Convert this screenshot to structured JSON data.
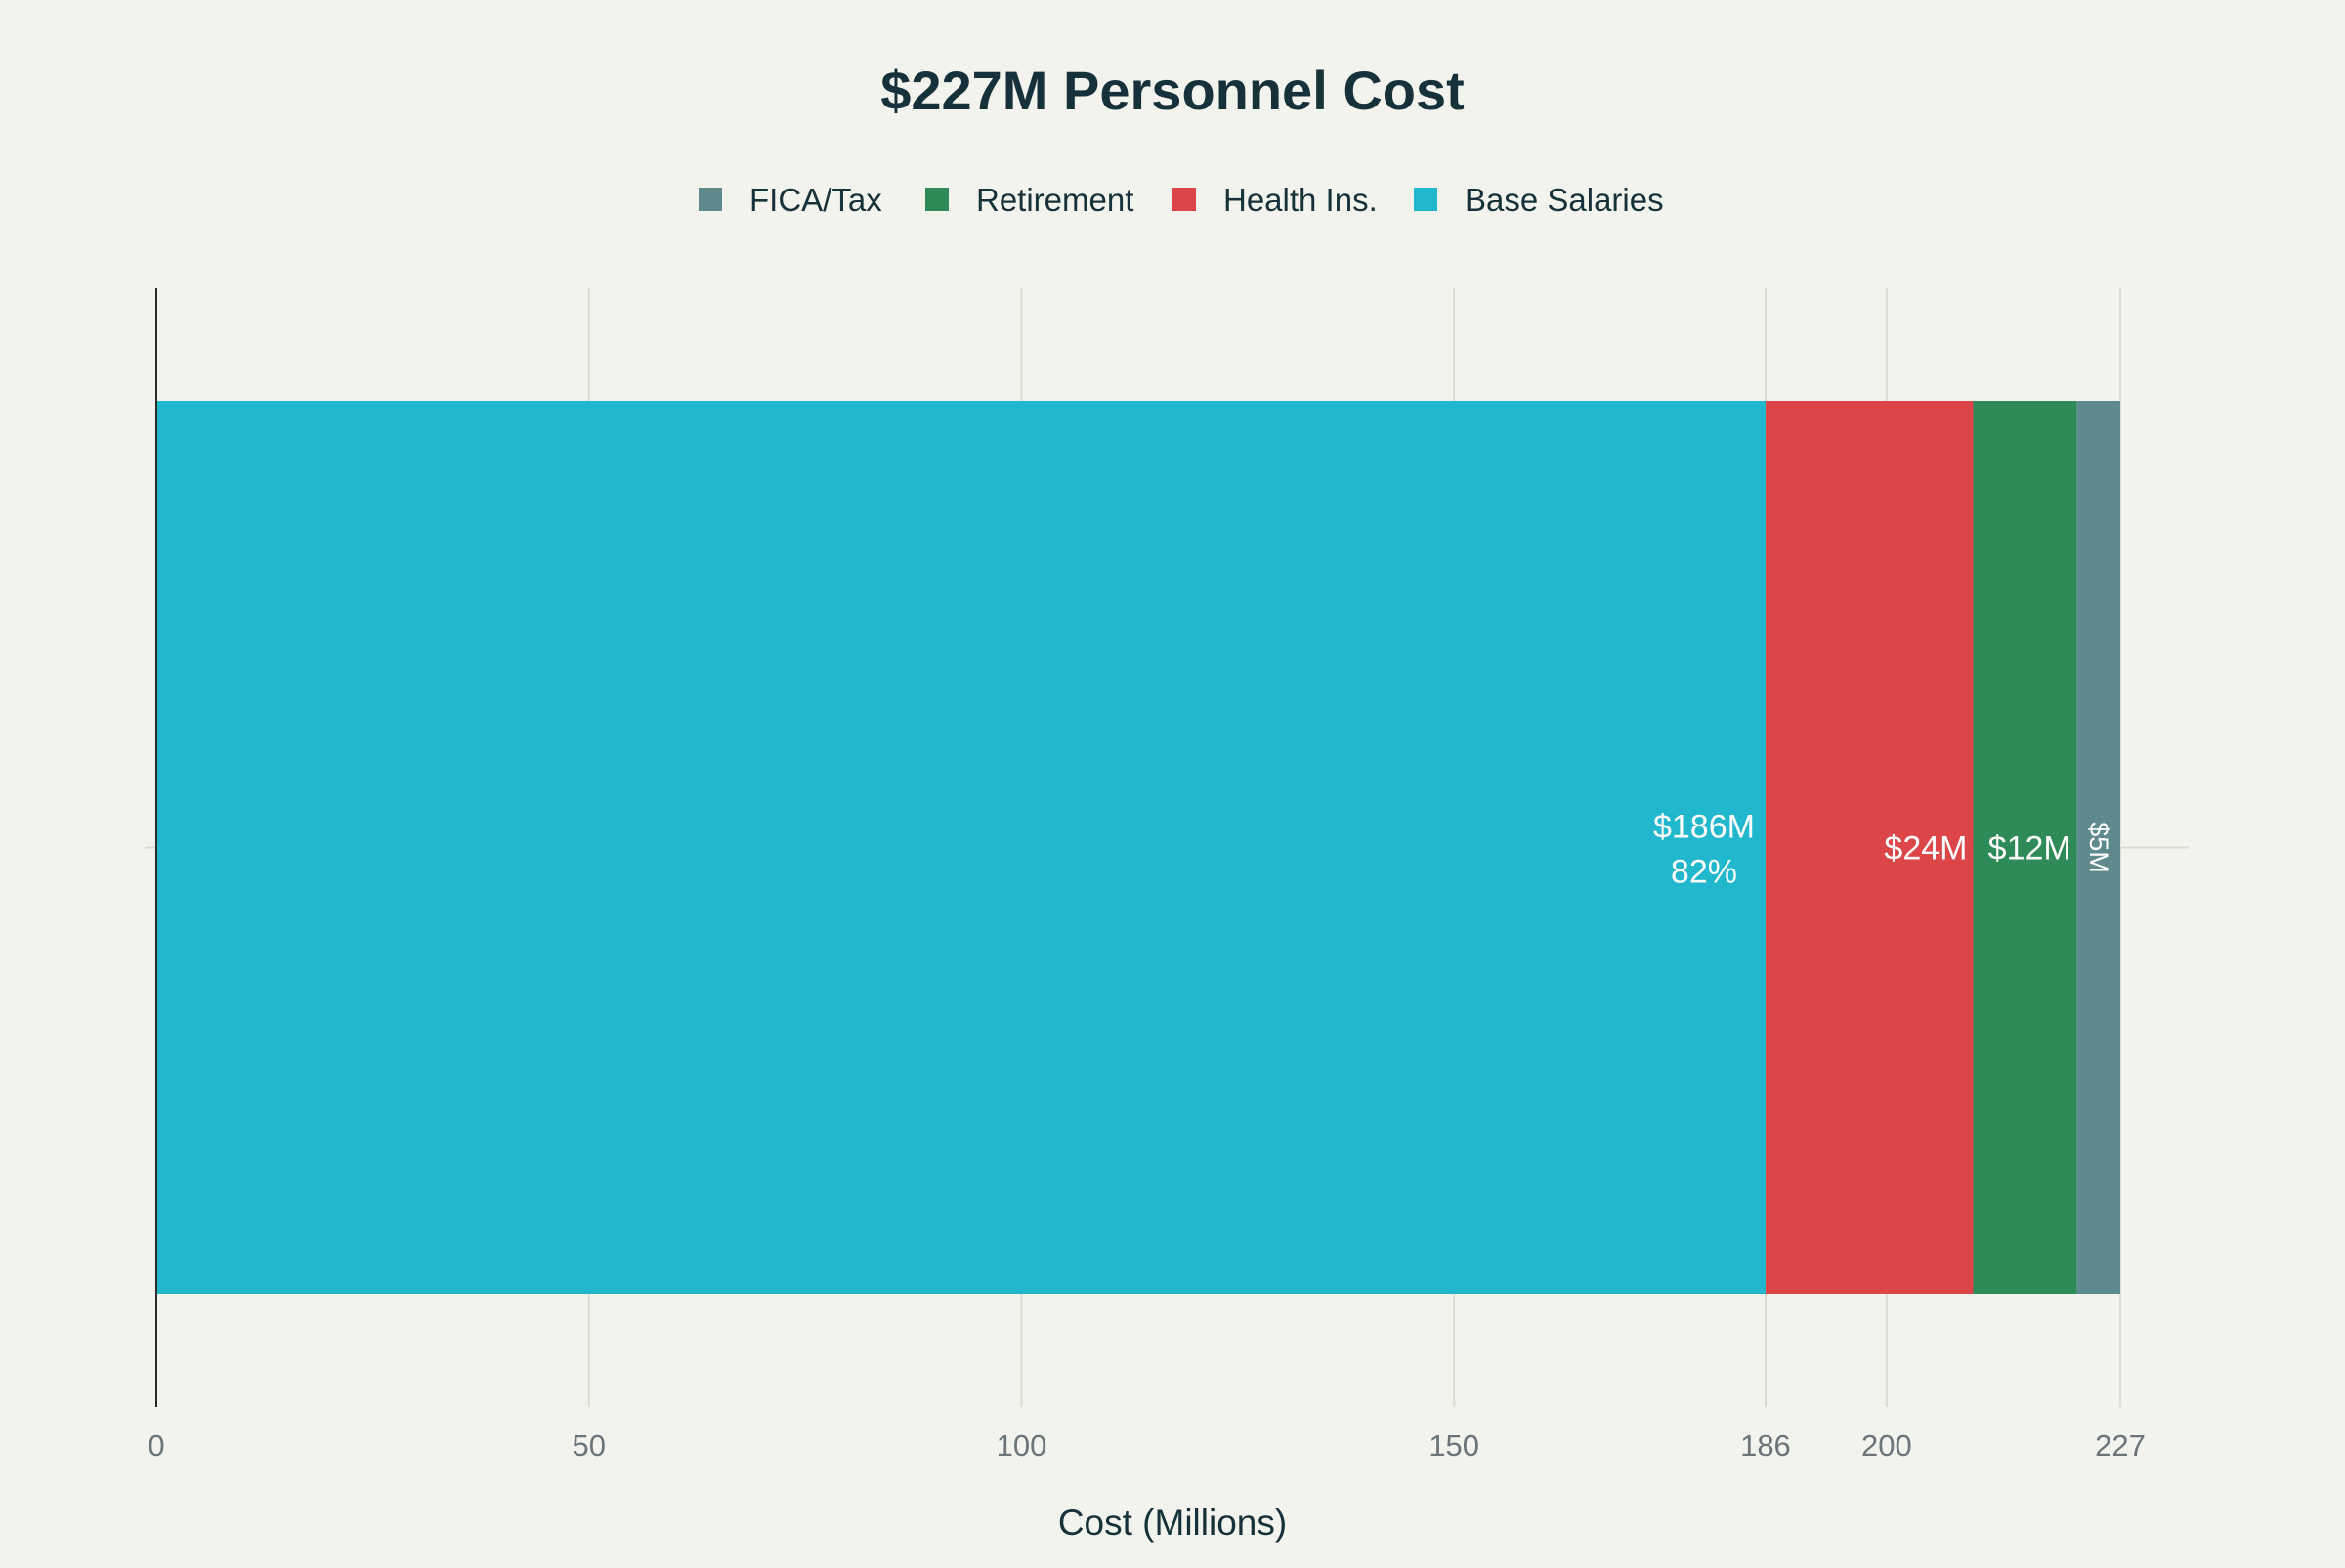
{
  "chart_data": {
    "type": "bar",
    "orientation": "horizontal",
    "stacked": true,
    "title": "$227M Personnel Cost",
    "xlabel": "Cost (Millions)",
    "ylabel": "",
    "xlim": [
      0,
      227
    ],
    "xticks": [
      0,
      50,
      100,
      150,
      186,
      200,
      227
    ],
    "grid": true,
    "legend_position": "top-center",
    "legend_order": [
      "FICA/Tax",
      "Retirement",
      "Health Ins.",
      "Base Salaries"
    ],
    "series": [
      {
        "name": "Base Salaries",
        "value": 186,
        "color": "#21b8cd",
        "label": "$186M",
        "sublabel": "82%"
      },
      {
        "name": "Health Ins.",
        "value": 24,
        "color": "#dd4649",
        "label": "$24M",
        "sublabel": ""
      },
      {
        "name": "Retirement",
        "value": 12,
        "color": "#2e8b57",
        "label": "$12M",
        "sublabel": ""
      },
      {
        "name": "FICA/Tax",
        "value": 5,
        "color": "#5e8a8e",
        "label": "$5M",
        "sublabel": ""
      }
    ]
  }
}
